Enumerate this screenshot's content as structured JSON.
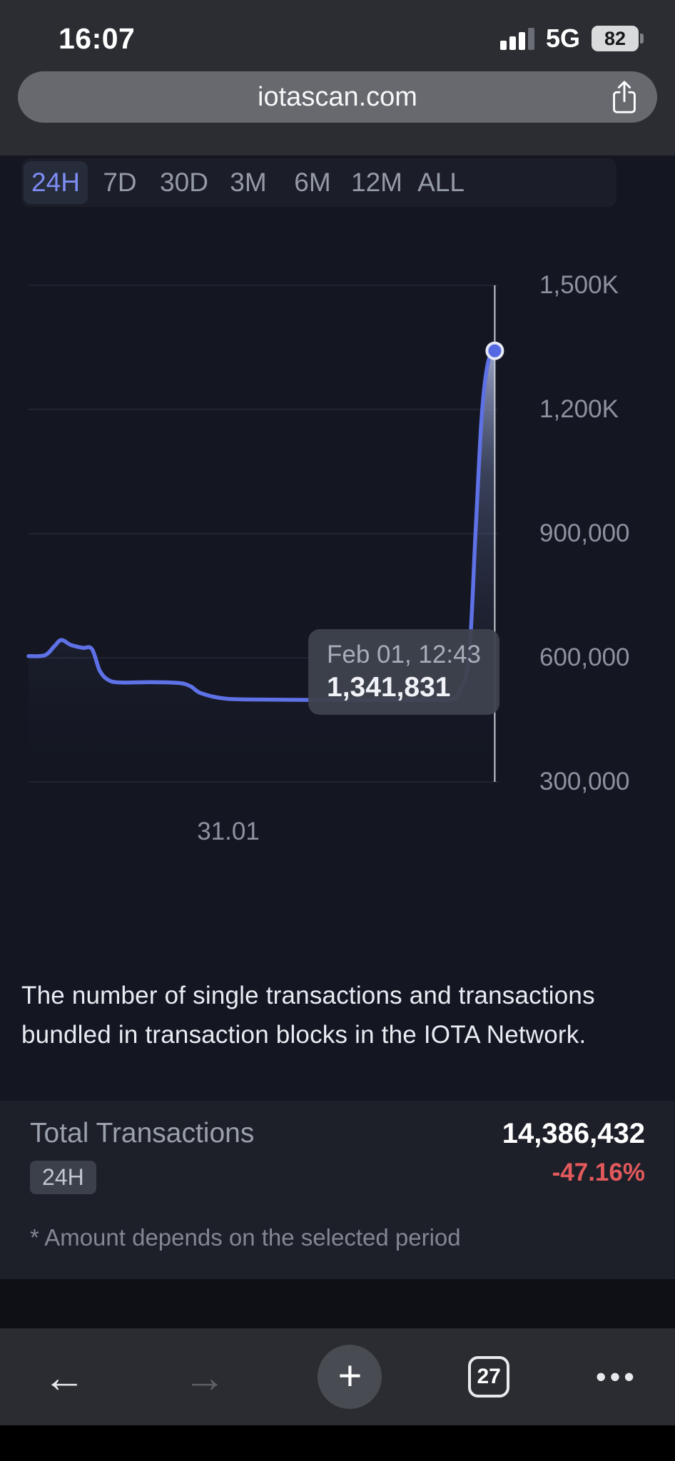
{
  "colors": {
    "accent": "#5e71e6",
    "negative": "#e3595c",
    "tab_active": "#7d8df4"
  },
  "status_bar": {
    "time": "16:07",
    "network": "5G",
    "battery_percent": "82"
  },
  "browser": {
    "url": "iotascan.com",
    "tab_count": "27"
  },
  "icons": {
    "back": "←",
    "forward": "→",
    "new_tab": "+",
    "more": "•••"
  },
  "range_tabs": {
    "items": [
      {
        "label": "24H",
        "selected": true
      },
      {
        "label": "7D",
        "selected": false
      },
      {
        "label": "30D",
        "selected": false
      },
      {
        "label": "3M",
        "selected": false
      },
      {
        "label": "6M",
        "selected": false
      },
      {
        "label": "12M",
        "selected": false
      },
      {
        "label": "ALL",
        "selected": false
      }
    ]
  },
  "chart_data": {
    "type": "area",
    "title": "IOTA transactions over time",
    "grid": true,
    "legend": false,
    "ylim": [
      300000,
      1500000
    ],
    "y_ticks": [
      {
        "label": "1,500K",
        "value": 1500000
      },
      {
        "label": "1,200K",
        "value": 1200000
      },
      {
        "label": "900,000",
        "value": 900000
      },
      {
        "label": "600,000",
        "value": 600000
      },
      {
        "label": "300,000",
        "value": 300000
      }
    ],
    "x_tick_label": "31.01",
    "tooltip": {
      "date": "Feb 01, 12:43",
      "value": "1,341,831"
    },
    "series": [
      {
        "name": "Transactions",
        "points": [
          [
            0.0,
            604000
          ],
          [
            0.035,
            606000
          ],
          [
            0.055,
            628000
          ],
          [
            0.07,
            643000
          ],
          [
            0.09,
            631000
          ],
          [
            0.115,
            624000
          ],
          [
            0.135,
            621000
          ],
          [
            0.152,
            568000
          ],
          [
            0.172,
            545000
          ],
          [
            0.2,
            540000
          ],
          [
            0.26,
            541000
          ],
          [
            0.32,
            539000
          ],
          [
            0.345,
            531000
          ],
          [
            0.368,
            514000
          ],
          [
            0.42,
            501000
          ],
          [
            0.5,
            499000
          ],
          [
            0.62,
            498000
          ],
          [
            0.75,
            498000
          ],
          [
            0.86,
            498000
          ],
          [
            0.9,
            499000
          ],
          [
            0.918,
            520000
          ],
          [
            0.938,
            600000
          ],
          [
            0.952,
            900000
          ],
          [
            0.965,
            1180000
          ],
          [
            0.978,
            1310000
          ],
          [
            0.993,
            1341831
          ]
        ]
      }
    ]
  },
  "description_lines": [
    "The number of single transactions and transactions",
    "bundled in transaction blocks in the IOTA Network."
  ],
  "stats": {
    "label": "Total Transactions",
    "period_badge": "24H",
    "value": "14,386,432",
    "change": "-47.16%",
    "footnote": "* Amount depends on the selected period"
  }
}
